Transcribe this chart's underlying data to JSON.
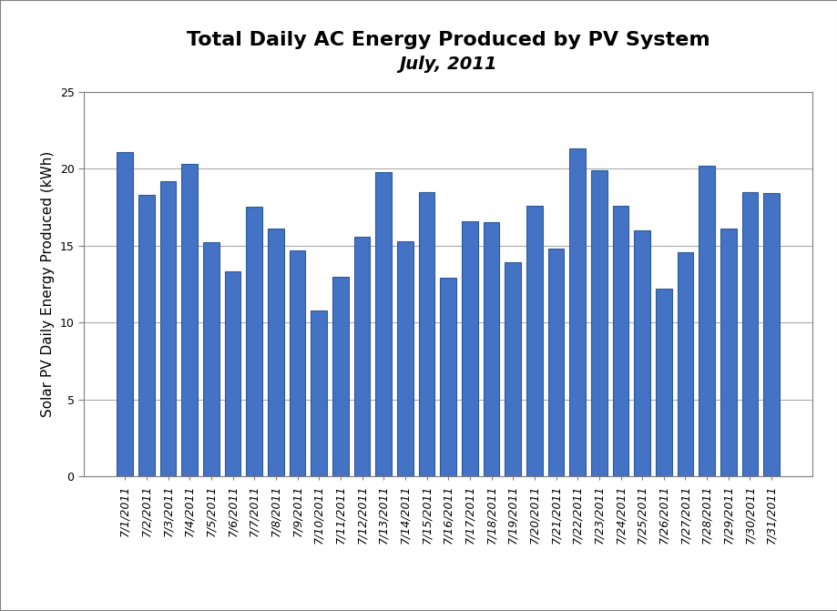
{
  "title_line1": "Total Daily AC Energy Produced by PV System",
  "title_line2": "July, 2011",
  "ylabel": "Solar PV Daily Energy Produced (kWh)",
  "categories": [
    "7/1/2011",
    "7/2/2011",
    "7/3/2011",
    "7/4/2011",
    "7/5/2011",
    "7/6/2011",
    "7/7/2011",
    "7/8/2011",
    "7/9/2011",
    "7/10/2011",
    "7/11/2011",
    "7/12/2011",
    "7/13/2011",
    "7/14/2011",
    "7/15/2011",
    "7/16/2011",
    "7/17/2011",
    "7/18/2011",
    "7/19/2011",
    "7/20/2011",
    "7/21/2011",
    "7/22/2011",
    "7/23/2011",
    "7/24/2011",
    "7/25/2011",
    "7/26/2011",
    "7/27/2011",
    "7/28/2011",
    "7/29/2011",
    "7/30/2011",
    "7/31/2011"
  ],
  "values": [
    21.1,
    18.3,
    19.2,
    20.3,
    15.2,
    13.3,
    17.5,
    16.1,
    14.7,
    10.8,
    13.0,
    15.6,
    19.8,
    15.3,
    18.5,
    12.9,
    16.6,
    16.5,
    13.9,
    17.6,
    14.8,
    21.3,
    19.9,
    17.6,
    16.0,
    12.2,
    14.6,
    20.2,
    16.1,
    18.5,
    18.4
  ],
  "bar_color": "#4472C4",
  "bar_edge_color": "#2E5B9A",
  "ylim": [
    0,
    25
  ],
  "yticks": [
    0,
    5,
    10,
    15,
    20,
    25
  ],
  "background_color": "#FFFFFF",
  "grid_color": "#AAAAAA",
  "title_fontsize": 16,
  "subtitle_fontsize": 14,
  "ylabel_fontsize": 11,
  "tick_fontsize": 9,
  "border_color": "#7F7F7F"
}
